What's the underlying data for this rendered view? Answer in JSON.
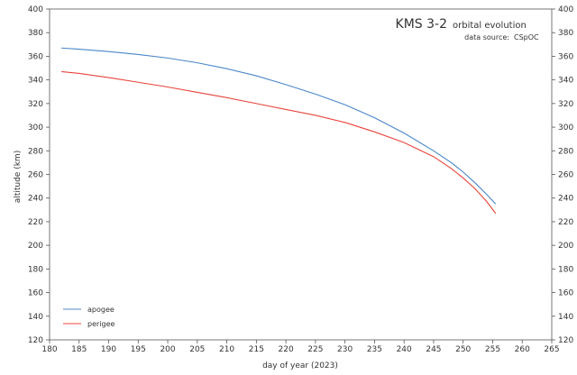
{
  "chart_data": {
    "type": "line",
    "title": "KMS 3-2",
    "subtitle": "orbital evolution",
    "source_label": "data source:",
    "source_value": "CSpOC",
    "xlabel": "day of year (2023)",
    "ylabel": "altitude (km)",
    "xlim": [
      180,
      265
    ],
    "ylim": [
      120,
      400
    ],
    "x_ticks": [
      180,
      185,
      190,
      195,
      200,
      205,
      210,
      215,
      220,
      225,
      230,
      235,
      240,
      245,
      250,
      255,
      260,
      265
    ],
    "y_ticks": [
      120,
      140,
      160,
      180,
      200,
      220,
      240,
      260,
      280,
      300,
      320,
      340,
      360,
      380,
      400
    ],
    "grid": false,
    "legend_position": "bottom-left",
    "series": [
      {
        "name": "apogee",
        "color": "#4a86c8",
        "x": [
          182,
          185,
          190,
          195,
          200,
          205,
          210,
          215,
          220,
          225,
          230,
          235,
          240,
          245,
          248,
          250,
          252,
          254,
          255.5
        ],
        "y": [
          367,
          366,
          364,
          361.5,
          358.5,
          354.5,
          349.5,
          343.5,
          336,
          328,
          319,
          308,
          295,
          280,
          270,
          262,
          253,
          243,
          235
        ]
      },
      {
        "name": "perigee",
        "color": "#e8453c",
        "x": [
          182,
          185,
          190,
          195,
          200,
          205,
          210,
          215,
          220,
          225,
          230,
          235,
          240,
          245,
          248,
          250,
          252,
          254,
          255.5
        ],
        "y": [
          347,
          345.5,
          342,
          338,
          334,
          329.5,
          325,
          320,
          315,
          310,
          304,
          296,
          287,
          275,
          265,
          257,
          248,
          237,
          227
        ]
      }
    ]
  }
}
